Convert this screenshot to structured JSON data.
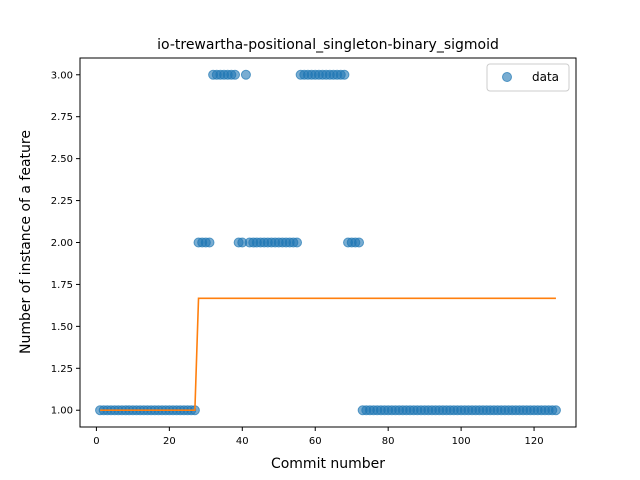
{
  "chart_data": {
    "type": "scatter",
    "title": "io-trewartha-positional_singleton-binary_sigmoid",
    "xlabel": "Commit number",
    "ylabel": "Number of instance of a feature",
    "xlim": [
      -4.5,
      131.5
    ],
    "ylim": [
      0.9,
      3.1
    ],
    "xticks": [
      0,
      20,
      40,
      60,
      80,
      100,
      120
    ],
    "xtick_labels": [
      "0",
      "20",
      "40",
      "60",
      "80",
      "100",
      "120"
    ],
    "yticks": [
      1.0,
      1.25,
      1.5,
      1.75,
      2.0,
      2.25,
      2.5,
      2.75,
      3.0
    ],
    "ytick_labels": [
      "1.00",
      "1.25",
      "1.50",
      "1.75",
      "2.00",
      "2.25",
      "2.50",
      "2.75",
      "3.00"
    ],
    "grid": false,
    "legend": {
      "placement": "top-right",
      "entries": [
        "data"
      ]
    },
    "series": [
      {
        "name": "data",
        "kind": "scatter",
        "color": "#1f77b4",
        "points": [
          [
            1,
            1
          ],
          [
            2,
            1
          ],
          [
            3,
            1
          ],
          [
            4,
            1
          ],
          [
            5,
            1
          ],
          [
            6,
            1
          ],
          [
            7,
            1
          ],
          [
            8,
            1
          ],
          [
            9,
            1
          ],
          [
            10,
            1
          ],
          [
            11,
            1
          ],
          [
            12,
            1
          ],
          [
            13,
            1
          ],
          [
            14,
            1
          ],
          [
            15,
            1
          ],
          [
            16,
            1
          ],
          [
            17,
            1
          ],
          [
            18,
            1
          ],
          [
            19,
            1
          ],
          [
            20,
            1
          ],
          [
            21,
            1
          ],
          [
            22,
            1
          ],
          [
            23,
            1
          ],
          [
            24,
            1
          ],
          [
            25,
            1
          ],
          [
            26,
            1
          ],
          [
            27,
            1
          ],
          [
            28,
            2
          ],
          [
            29,
            2
          ],
          [
            30,
            2
          ],
          [
            31,
            2
          ],
          [
            32,
            3
          ],
          [
            33,
            3
          ],
          [
            34,
            3
          ],
          [
            35,
            3
          ],
          [
            36,
            3
          ],
          [
            37,
            3
          ],
          [
            38,
            3
          ],
          [
            39,
            2
          ],
          [
            40,
            2
          ],
          [
            41,
            3
          ],
          [
            42,
            2
          ],
          [
            43,
            2
          ],
          [
            44,
            2
          ],
          [
            45,
            2
          ],
          [
            46,
            2
          ],
          [
            47,
            2
          ],
          [
            48,
            2
          ],
          [
            49,
            2
          ],
          [
            50,
            2
          ],
          [
            51,
            2
          ],
          [
            52,
            2
          ],
          [
            53,
            2
          ],
          [
            54,
            2
          ],
          [
            55,
            2
          ],
          [
            56,
            3
          ],
          [
            57,
            3
          ],
          [
            58,
            3
          ],
          [
            59,
            3
          ],
          [
            60,
            3
          ],
          [
            61,
            3
          ],
          [
            62,
            3
          ],
          [
            63,
            3
          ],
          [
            64,
            3
          ],
          [
            65,
            3
          ],
          [
            66,
            3
          ],
          [
            67,
            3
          ],
          [
            68,
            3
          ],
          [
            69,
            2
          ],
          [
            70,
            2
          ],
          [
            71,
            2
          ],
          [
            72,
            2
          ],
          [
            73,
            1
          ],
          [
            74,
            1
          ],
          [
            75,
            1
          ],
          [
            76,
            1
          ],
          [
            77,
            1
          ],
          [
            78,
            1
          ],
          [
            79,
            1
          ],
          [
            80,
            1
          ],
          [
            81,
            1
          ],
          [
            82,
            1
          ],
          [
            83,
            1
          ],
          [
            84,
            1
          ],
          [
            85,
            1
          ],
          [
            86,
            1
          ],
          [
            87,
            1
          ],
          [
            88,
            1
          ],
          [
            89,
            1
          ],
          [
            90,
            1
          ],
          [
            91,
            1
          ],
          [
            92,
            1
          ],
          [
            93,
            1
          ],
          [
            94,
            1
          ],
          [
            95,
            1
          ],
          [
            96,
            1
          ],
          [
            97,
            1
          ],
          [
            98,
            1
          ],
          [
            99,
            1
          ],
          [
            100,
            1
          ],
          [
            101,
            1
          ],
          [
            102,
            1
          ],
          [
            103,
            1
          ],
          [
            104,
            1
          ],
          [
            105,
            1
          ],
          [
            106,
            1
          ],
          [
            107,
            1
          ],
          [
            108,
            1
          ],
          [
            109,
            1
          ],
          [
            110,
            1
          ],
          [
            111,
            1
          ],
          [
            112,
            1
          ],
          [
            113,
            1
          ],
          [
            114,
            1
          ],
          [
            115,
            1
          ],
          [
            116,
            1
          ],
          [
            117,
            1
          ],
          [
            118,
            1
          ],
          [
            119,
            1
          ],
          [
            120,
            1
          ],
          [
            121,
            1
          ],
          [
            122,
            1
          ],
          [
            123,
            1
          ],
          [
            124,
            1
          ],
          [
            125,
            1
          ],
          [
            126,
            1
          ]
        ]
      },
      {
        "name": "",
        "kind": "line",
        "color": "#ff7f0e",
        "points": [
          [
            1,
            1.0
          ],
          [
            27,
            1.0
          ],
          [
            28,
            1.667
          ],
          [
            126,
            1.667
          ]
        ]
      }
    ]
  }
}
